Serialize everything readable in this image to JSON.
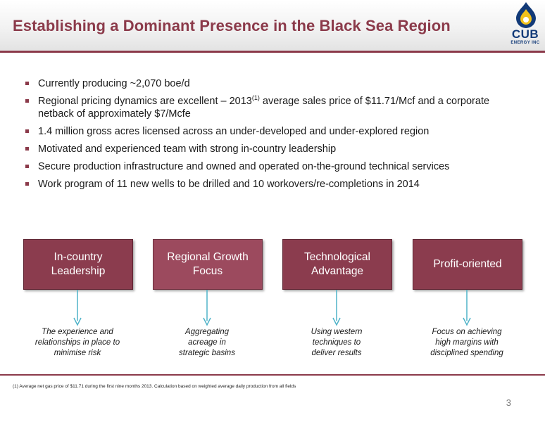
{
  "header": {
    "title": "Establishing a Dominant Presence in the Black Sea Region"
  },
  "logo": {
    "name": "CUB",
    "subtitle": "ENERGY INC"
  },
  "bullets": [
    {
      "text": "Currently producing ~2,070 boe/d"
    },
    {
      "pre": "Regional pricing dynamics are excellent – 2013",
      "sup": "(1)",
      "post": " average sales price of $11.71/Mcf and a corporate netback of approximately $7/Mcfe"
    },
    {
      "text": "1.4 million gross acres licensed across an under-developed and under-explored region"
    },
    {
      "text": "Motivated and experienced team with strong in-country leadership"
    },
    {
      "text": "Secure production infrastructure and owned and operated on-the-ground technical services"
    },
    {
      "text": "Work program of 11 new wells to be drilled and 10 workovers/re-completions in 2014"
    }
  ],
  "pillars": [
    {
      "label": "In-country\nLeadership",
      "caption": "The experience and\nrelationships in place to\nminimise risk"
    },
    {
      "label": "Regional Growth\nFocus",
      "caption": "Aggregating\nacreage in\nstrategic basins"
    },
    {
      "label": "Technological\nAdvantage",
      "caption": "Using western\ntechniques to\ndeliver results"
    },
    {
      "label": "Profit-oriented",
      "caption": "Focus on achieving\nhigh margins with\ndisciplined spending"
    }
  ],
  "footnote": "(1) Average net gas price of $11.71 during the first nine months 2013. Calculation based on weighted average daily production from all fields",
  "page_number": "3",
  "colors": {
    "accent": "#8b3a4a",
    "box": "#8b3c4e",
    "arrow": "#4fb3c8",
    "logo_blue": "#123a78",
    "logo_yellow": "#f2c21b"
  }
}
